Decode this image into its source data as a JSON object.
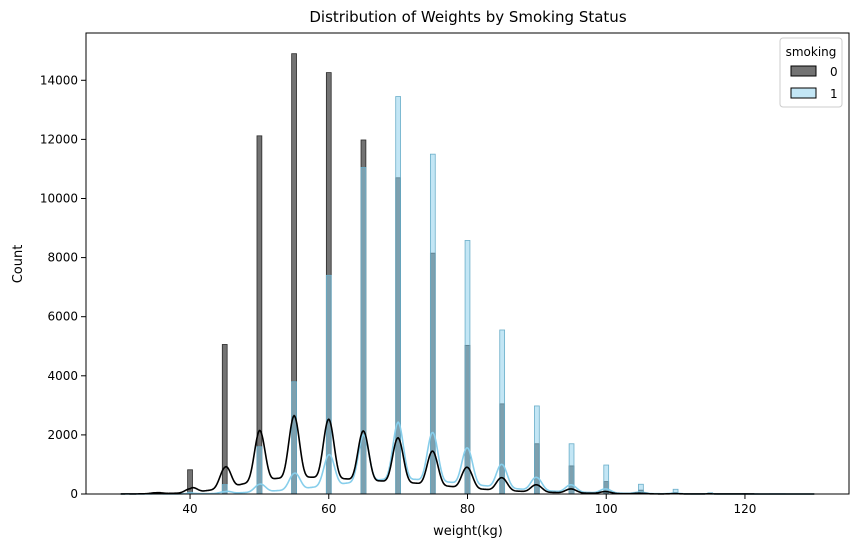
{
  "chart_data": {
    "type": "histogram",
    "title": "Distribution of Weights by Smoking Status",
    "xlabel": "weight(kg)",
    "ylabel": "Count",
    "xlim": [
      25,
      135
    ],
    "ylim": [
      0,
      15600
    ],
    "xticks": [
      40,
      60,
      80,
      100,
      120
    ],
    "yticks": [
      0,
      2000,
      4000,
      6000,
      8000,
      10000,
      12000,
      14000
    ],
    "bar_width": 0.7,
    "grid": false,
    "legend": {
      "title": "smoking",
      "placement": "top-right"
    },
    "colors": {
      "0": "#000000",
      "1": "#87ceeb"
    },
    "series": [
      {
        "name": "0",
        "color": "#000000",
        "bins": [
          {
            "x": 35,
            "count": 50
          },
          {
            "x": 40,
            "count": 820
          },
          {
            "x": 45,
            "count": 5060
          },
          {
            "x": 50,
            "count": 12120
          },
          {
            "x": 55,
            "count": 14900
          },
          {
            "x": 60,
            "count": 14260
          },
          {
            "x": 65,
            "count": 11980
          },
          {
            "x": 70,
            "count": 10700
          },
          {
            "x": 75,
            "count": 8150
          },
          {
            "x": 80,
            "count": 5030
          },
          {
            "x": 85,
            "count": 3050
          },
          {
            "x": 90,
            "count": 1700
          },
          {
            "x": 95,
            "count": 950
          },
          {
            "x": 100,
            "count": 420
          },
          {
            "x": 105,
            "count": 130
          },
          {
            "x": 110,
            "count": 50
          },
          {
            "x": 115,
            "count": 20
          },
          {
            "x": 120,
            "count": 10
          }
        ],
        "kde": [
          {
            "x": 30,
            "y": 0
          },
          {
            "x": 35,
            "y": 40
          },
          {
            "x": 40,
            "y": 180
          },
          {
            "x": 45,
            "y": 900
          },
          {
            "x": 50,
            "y": 2150
          },
          {
            "x": 55,
            "y": 2650
          },
          {
            "x": 60,
            "y": 2530
          },
          {
            "x": 65,
            "y": 2130
          },
          {
            "x": 70,
            "y": 1900
          },
          {
            "x": 75,
            "y": 1450
          },
          {
            "x": 80,
            "y": 900
          },
          {
            "x": 85,
            "y": 550
          },
          {
            "x": 90,
            "y": 310
          },
          {
            "x": 95,
            "y": 170
          },
          {
            "x": 100,
            "y": 80
          },
          {
            "x": 105,
            "y": 25
          },
          {
            "x": 110,
            "y": 10
          },
          {
            "x": 115,
            "y": 5
          },
          {
            "x": 120,
            "y": 2
          },
          {
            "x": 125,
            "y": 0
          },
          {
            "x": 130,
            "y": 0
          }
        ]
      },
      {
        "name": "1",
        "color": "#87ceeb",
        "bins": [
          {
            "x": 40,
            "count": 60
          },
          {
            "x": 45,
            "count": 320
          },
          {
            "x": 50,
            "count": 1600
          },
          {
            "x": 55,
            "count": 3800
          },
          {
            "x": 60,
            "count": 7400
          },
          {
            "x": 65,
            "count": 11050
          },
          {
            "x": 70,
            "count": 13450
          },
          {
            "x": 75,
            "count": 11500
          },
          {
            "x": 80,
            "count": 8580
          },
          {
            "x": 85,
            "count": 5550
          },
          {
            "x": 90,
            "count": 2980
          },
          {
            "x": 95,
            "count": 1700
          },
          {
            "x": 100,
            "count": 980
          },
          {
            "x": 105,
            "count": 330
          },
          {
            "x": 110,
            "count": 160
          },
          {
            "x": 115,
            "count": 40
          },
          {
            "x": 120,
            "count": 15
          }
        ],
        "kde": [
          {
            "x": 30,
            "y": 0
          },
          {
            "x": 35,
            "y": 5
          },
          {
            "x": 40,
            "y": 20
          },
          {
            "x": 45,
            "y": 80
          },
          {
            "x": 50,
            "y": 330
          },
          {
            "x": 55,
            "y": 700
          },
          {
            "x": 60,
            "y": 1330
          },
          {
            "x": 65,
            "y": 2000
          },
          {
            "x": 70,
            "y": 2430
          },
          {
            "x": 75,
            "y": 2080
          },
          {
            "x": 80,
            "y": 1560
          },
          {
            "x": 85,
            "y": 1000
          },
          {
            "x": 90,
            "y": 560
          },
          {
            "x": 95,
            "y": 310
          },
          {
            "x": 100,
            "y": 170
          },
          {
            "x": 105,
            "y": 60
          },
          {
            "x": 110,
            "y": 25
          },
          {
            "x": 115,
            "y": 8
          },
          {
            "x": 120,
            "y": 3
          },
          {
            "x": 125,
            "y": 1
          },
          {
            "x": 130,
            "y": 0
          }
        ]
      }
    ]
  }
}
